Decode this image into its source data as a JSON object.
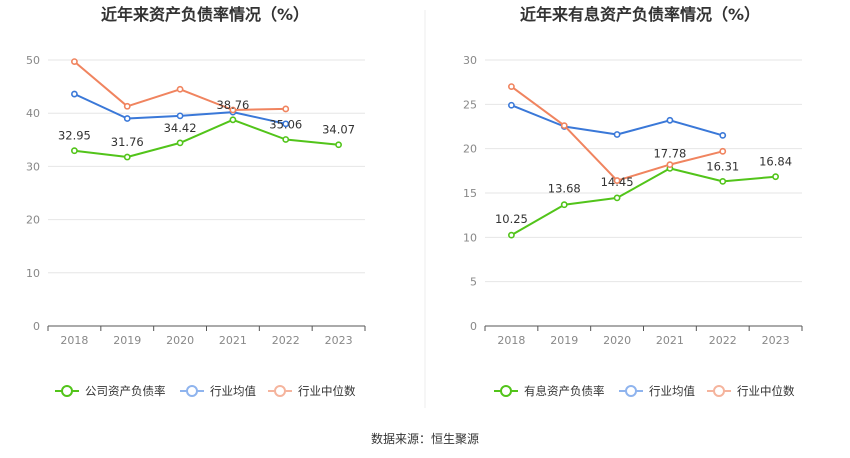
{
  "source": "数据来源：恒生聚源",
  "chart_data": [
    {
      "type": "line",
      "title": "近年来资产负债率情况（%）",
      "categories": [
        "2018",
        "2019",
        "2020",
        "2021",
        "2022",
        "2023"
      ],
      "ylim": [
        0,
        50
      ],
      "yticks": [
        0,
        10,
        20,
        30,
        40,
        50
      ],
      "grid": true,
      "legend_position": "bottom",
      "series": [
        {
          "name": "公司资产负债率",
          "color": "#52c41a",
          "values": [
            32.95,
            31.76,
            34.42,
            38.76,
            35.06,
            34.07
          ],
          "labels": [
            "32.95",
            "31.76",
            "34.42",
            "38.76",
            "35.06",
            "34.07"
          ]
        },
        {
          "name": "行业均值",
          "color": "#3a78d8",
          "values": [
            43.6,
            39.0,
            39.5,
            40.2,
            38.0,
            null
          ]
        },
        {
          "name": "行业中位数",
          "color": "#f0845f",
          "values": [
            49.7,
            41.3,
            44.5,
            40.6,
            40.8,
            null
          ]
        }
      ]
    },
    {
      "type": "line",
      "title": "近年来有息资产负债率情况（%）",
      "categories": [
        "2018",
        "2019",
        "2020",
        "2021",
        "2022",
        "2023"
      ],
      "ylim": [
        0,
        30
      ],
      "yticks": [
        0,
        5,
        10,
        15,
        20,
        25,
        30
      ],
      "grid": true,
      "legend_position": "bottom",
      "series": [
        {
          "name": "有息资产负债率",
          "color": "#52c41a",
          "values": [
            10.25,
            13.68,
            14.45,
            17.78,
            16.31,
            16.84
          ],
          "labels": [
            "10.25",
            "13.68",
            "14.45",
            "17.78",
            "16.31",
            "16.84"
          ]
        },
        {
          "name": "行业均值",
          "color": "#3a78d8",
          "values": [
            24.9,
            22.5,
            21.6,
            23.2,
            21.5,
            null
          ]
        },
        {
          "name": "行业中位数",
          "color": "#f0845f",
          "values": [
            27.0,
            22.6,
            16.4,
            18.2,
            19.7,
            null
          ]
        }
      ]
    }
  ]
}
